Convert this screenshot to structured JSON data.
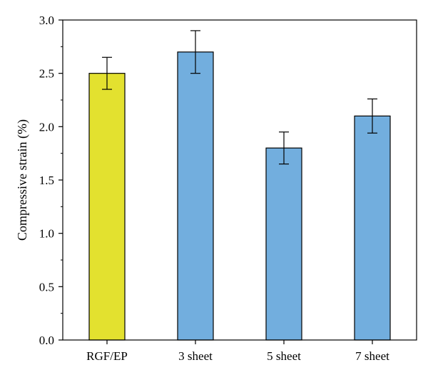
{
  "chart_data": {
    "type": "bar",
    "title": "",
    "xlabel": "",
    "ylabel": "Compressive strain (%)",
    "categories": [
      "RGF/EP",
      "3 sheet",
      "5 sheet",
      "7 sheet"
    ],
    "values": [
      2.5,
      2.7,
      1.8,
      2.1
    ],
    "error_low": [
      2.35,
      2.5,
      1.65,
      1.94
    ],
    "error_high": [
      2.65,
      2.9,
      1.95,
      2.26
    ],
    "bar_colors": [
      "#e3e12f",
      "#72aede",
      "#72aede",
      "#72aede"
    ],
    "ylim": [
      0,
      3.0
    ],
    "yticks": [
      0.0,
      0.5,
      1.0,
      1.5,
      2.0,
      2.5,
      3.0
    ],
    "ytick_labels": [
      "0.0",
      "0.5",
      "1.0",
      "1.5",
      "2.0",
      "2.5",
      "3.0"
    ],
    "grid": false,
    "legend": "none"
  }
}
